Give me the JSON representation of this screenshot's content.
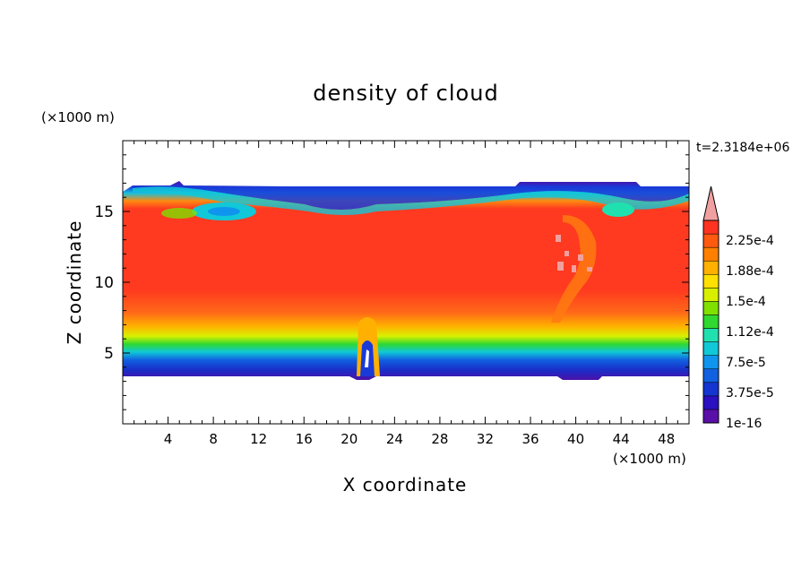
{
  "chart_data": {
    "type": "heatmap",
    "title": "density of cloud",
    "xlabel": "X coordinate",
    "ylabel": "Z coordinate",
    "x_unit": "(×1000 m)",
    "y_unit": "(×1000 m)",
    "time_label": "t=2.3184e+06",
    "xlim": [
      0,
      50
    ],
    "ylim": [
      0,
      20
    ],
    "x_ticks": [
      4,
      8,
      12,
      16,
      20,
      24,
      28,
      32,
      36,
      40,
      44,
      48
    ],
    "y_ticks": [
      5,
      10,
      15
    ],
    "colorbar": {
      "labels": [
        "2.25e-4",
        "1.88e-4",
        "1.5e-4",
        "1.12e-4",
        "7.5e-5",
        "3.75e-5",
        "1e-16"
      ],
      "levels": [
        {
          "color": "#5a0fa8"
        },
        {
          "color": "#2a10c0"
        },
        {
          "color": "#1535d0"
        },
        {
          "color": "#1060e0"
        },
        {
          "color": "#1095ee"
        },
        {
          "color": "#10c8d8"
        },
        {
          "color": "#20e0b0"
        },
        {
          "color": "#30d830"
        },
        {
          "color": "#80e000"
        },
        {
          "color": "#d8f000"
        },
        {
          "color": "#ffe000"
        },
        {
          "color": "#ffb000"
        },
        {
          "color": "#ff8000"
        },
        {
          "color": "#ff5a10"
        },
        {
          "color": "#ff3320"
        },
        {
          "color": "#f0a0a0"
        }
      ]
    }
  }
}
